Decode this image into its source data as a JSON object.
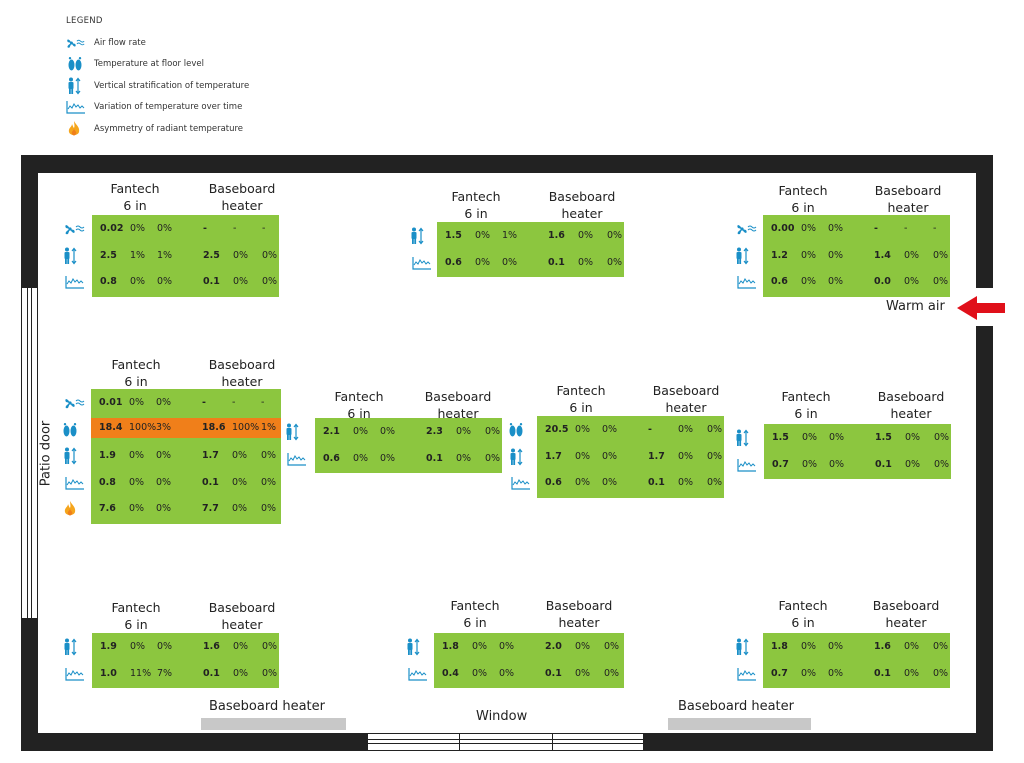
{
  "legend": {
    "title": "LEGEND",
    "items": [
      {
        "icon": "fan-icon",
        "label": "Air flow rate"
      },
      {
        "icon": "feet-icon",
        "label": "Temperature at floor level"
      },
      {
        "icon": "person-stratification-icon",
        "label": "Vertical stratification of temperature"
      },
      {
        "icon": "temperature-graph-icon",
        "label": "Variation of temperature over time"
      },
      {
        "icon": "flame-icon",
        "label": "Asymmetry of radiant temperature"
      }
    ]
  },
  "room": {
    "patio_door": "Patio door",
    "window": "Window",
    "warm_air": "Warm air",
    "baseboard_left": "Baseboard heater",
    "baseboard_right": "Baseboard heater"
  },
  "colors": {
    "good": "#8cc63f",
    "bad": "#f07f1a",
    "wall": "#222222",
    "heater": "#c8c8c8",
    "arrow": "#e0101a",
    "icon": "#1a8fc7"
  },
  "blocks": [
    {
      "id": "tl",
      "h1": "Fantech\n6 in",
      "h2": "Baseboard\nheater",
      "rows": [
        {
          "icon": "fan-icon",
          "hl": false,
          "c": [
            "0.02",
            "0%",
            "0%",
            "-",
            "-",
            "-"
          ]
        },
        {
          "icon": "person-stratification-icon",
          "hl": false,
          "c": [
            "2.5",
            "1%",
            "1%",
            "2.5",
            "0%",
            "0%"
          ]
        },
        {
          "icon": "temperature-graph-icon",
          "hl": false,
          "c": [
            "0.8",
            "0%",
            "0%",
            "0.1",
            "0%",
            "0%"
          ]
        }
      ]
    },
    {
      "id": "tc",
      "h1": "Fantech\n6 in",
      "h2": "Baseboard\nheater",
      "rows": [
        {
          "icon": "person-stratification-icon",
          "hl": false,
          "c": [
            "1.5",
            "0%",
            "1%",
            "1.6",
            "0%",
            "0%"
          ]
        },
        {
          "icon": "temperature-graph-icon",
          "hl": false,
          "c": [
            "0.6",
            "0%",
            "0%",
            "0.1",
            "0%",
            "0%"
          ]
        }
      ]
    },
    {
      "id": "tr",
      "h1": "Fantech\n6 in",
      "h2": "Baseboard\nheater",
      "rows": [
        {
          "icon": "fan-icon",
          "hl": false,
          "c": [
            "0.00",
            "0%",
            "0%",
            "-",
            "-",
            "-"
          ]
        },
        {
          "icon": "person-stratification-icon",
          "hl": false,
          "c": [
            "1.2",
            "0%",
            "0%",
            "1.4",
            "0%",
            "0%"
          ]
        },
        {
          "icon": "temperature-graph-icon",
          "hl": false,
          "c": [
            "0.6",
            "0%",
            "0%",
            "0.0",
            "0%",
            "0%"
          ]
        }
      ]
    },
    {
      "id": "ml",
      "h1": "Fantech\n6 in",
      "h2": "Baseboard\nheater",
      "rows": [
        {
          "icon": "fan-icon",
          "hl": false,
          "c": [
            "0.01",
            "0%",
            "0%",
            "-",
            "-",
            "-"
          ]
        },
        {
          "icon": "feet-icon",
          "hl": true,
          "c": [
            "18.4",
            "100%",
            "3%",
            "18.6",
            "100%",
            "1%"
          ]
        },
        {
          "icon": "person-stratification-icon",
          "hl": false,
          "c": [
            "1.9",
            "0%",
            "0%",
            "1.7",
            "0%",
            "0%"
          ]
        },
        {
          "icon": "temperature-graph-icon",
          "hl": false,
          "c": [
            "0.8",
            "0%",
            "0%",
            "0.1",
            "0%",
            "0%"
          ]
        },
        {
          "icon": "flame-icon",
          "hl": false,
          "c": [
            "7.6",
            "0%",
            "0%",
            "7.7",
            "0%",
            "0%"
          ]
        }
      ]
    },
    {
      "id": "mcl",
      "h1": "Fantech\n6 in",
      "h2": "Baseboard\nheater",
      "rows": [
        {
          "icon": "person-stratification-icon",
          "hl": false,
          "c": [
            "2.1",
            "0%",
            "0%",
            "2.3",
            "0%",
            "0%"
          ]
        },
        {
          "icon": "temperature-graph-icon",
          "hl": false,
          "c": [
            "0.6",
            "0%",
            "0%",
            "0.1",
            "0%",
            "0%"
          ]
        }
      ]
    },
    {
      "id": "mcr",
      "h1": "Fantech\n6 in",
      "h2": "Baseboard\nheater",
      "rows": [
        {
          "icon": "feet-icon",
          "hl": false,
          "c": [
            "20.5",
            "0%",
            "0%",
            "-",
            "0%",
            "0%"
          ]
        },
        {
          "icon": "person-stratification-icon",
          "hl": false,
          "c": [
            "1.7",
            "0%",
            "0%",
            "1.7",
            "0%",
            "0%"
          ]
        },
        {
          "icon": "temperature-graph-icon",
          "hl": false,
          "c": [
            "0.6",
            "0%",
            "0%",
            "0.1",
            "0%",
            "0%"
          ]
        }
      ]
    },
    {
      "id": "mr",
      "h1": "Fantech\n6 in",
      "h2": "Baseboard\nheater",
      "rows": [
        {
          "icon": "person-stratification-icon",
          "hl": false,
          "c": [
            "1.5",
            "0%",
            "0%",
            "1.5",
            "0%",
            "0%"
          ]
        },
        {
          "icon": "temperature-graph-icon",
          "hl": false,
          "c": [
            "0.7",
            "0%",
            "0%",
            "0.1",
            "0%",
            "0%"
          ]
        }
      ]
    },
    {
      "id": "bl",
      "h1": "Fantech\n6 in",
      "h2": "Baseboard\nheater",
      "rows": [
        {
          "icon": "person-stratification-icon",
          "hl": false,
          "c": [
            "1.9",
            "0%",
            "0%",
            "1.6",
            "0%",
            "0%"
          ]
        },
        {
          "icon": "temperature-graph-icon",
          "hl": false,
          "c": [
            "1.0",
            "11%",
            "7%",
            "0.1",
            "0%",
            "0%"
          ]
        }
      ]
    },
    {
      "id": "bc",
      "h1": "Fantech\n6 in",
      "h2": "Baseboard\nheater",
      "rows": [
        {
          "icon": "person-stratification-icon",
          "hl": false,
          "c": [
            "1.8",
            "0%",
            "0%",
            "2.0",
            "0%",
            "0%"
          ]
        },
        {
          "icon": "temperature-graph-icon",
          "hl": false,
          "c": [
            "0.4",
            "0%",
            "0%",
            "0.1",
            "0%",
            "0%"
          ]
        }
      ]
    },
    {
      "id": "br",
      "h1": "Fantech\n6 in",
      "h2": "Baseboard\nheater",
      "rows": [
        {
          "icon": "person-stratification-icon",
          "hl": false,
          "c": [
            "1.8",
            "0%",
            "0%",
            "1.6",
            "0%",
            "0%"
          ]
        },
        {
          "icon": "temperature-graph-icon",
          "hl": false,
          "c": [
            "0.7",
            "0%",
            "0%",
            "0.1",
            "0%",
            "0%"
          ]
        }
      ]
    }
  ]
}
